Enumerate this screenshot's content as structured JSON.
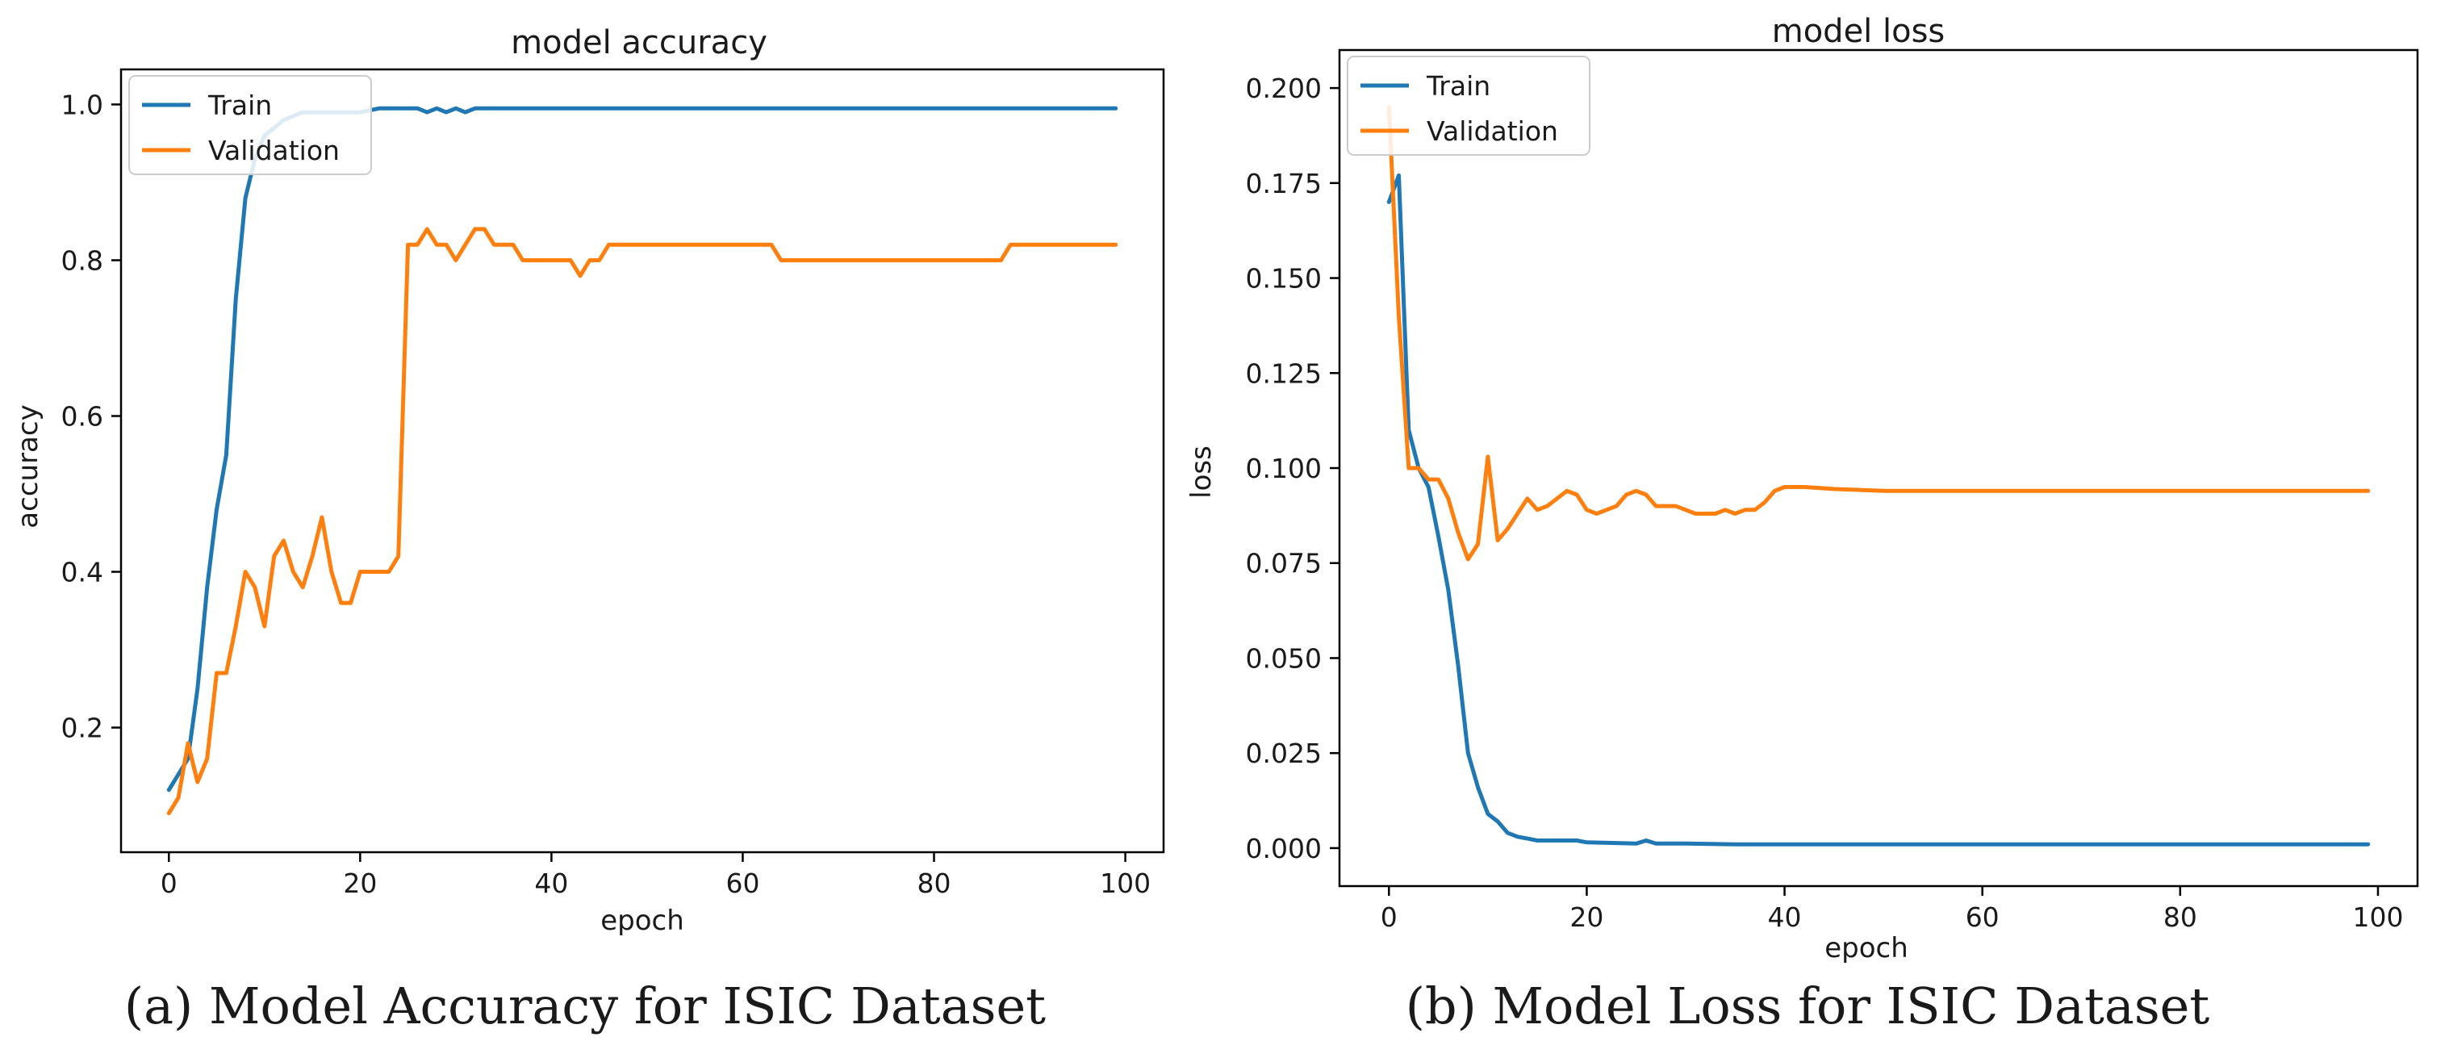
{
  "colors": {
    "train": "#1f77b4",
    "validation": "#ff7f0e",
    "axes": "#000000"
  },
  "chart_data": [
    {
      "id": "accuracy",
      "type": "line",
      "title": "model accuracy",
      "caption": "(a) Model Accuracy for ISIC Dataset",
      "xlabel": "epoch",
      "ylabel": "accuracy",
      "xlim": [
        -5,
        104
      ],
      "ylim": [
        0.04,
        1.045
      ],
      "xticks": [
        0,
        20,
        40,
        60,
        80,
        100
      ],
      "yticks": [
        0.2,
        0.4,
        0.6,
        0.8,
        1.0
      ],
      "ytick_labels": [
        "0.2",
        "0.4",
        "0.6",
        "0.8",
        "1.0"
      ],
      "legend": {
        "position": "top-left",
        "entries": [
          "Train",
          "Validation"
        ]
      },
      "series": [
        {
          "name": "Train",
          "x": [
            0,
            1,
            2,
            3,
            4,
            5,
            6,
            7,
            8,
            9,
            10,
            11,
            12,
            13,
            14,
            15,
            16,
            17,
            18,
            19,
            20,
            22,
            24,
            26,
            27,
            28,
            29,
            30,
            31,
            32,
            34,
            40,
            50,
            60,
            70,
            80,
            90,
            99
          ],
          "y": [
            0.12,
            0.14,
            0.16,
            0.25,
            0.38,
            0.48,
            0.55,
            0.75,
            0.88,
            0.93,
            0.96,
            0.97,
            0.98,
            0.985,
            0.99,
            0.99,
            0.99,
            0.99,
            0.99,
            0.99,
            0.99,
            0.995,
            0.995,
            0.995,
            0.99,
            0.995,
            0.99,
            0.995,
            0.99,
            0.995,
            0.995,
            0.995,
            0.995,
            0.995,
            0.995,
            0.995,
            0.995,
            0.995
          ]
        },
        {
          "name": "Validation",
          "x": [
            0,
            1,
            2,
            3,
            4,
            5,
            6,
            7,
            8,
            9,
            10,
            11,
            12,
            13,
            14,
            15,
            16,
            17,
            18,
            19,
            20,
            21,
            22,
            23,
            24,
            25,
            26,
            27,
            28,
            29,
            30,
            31,
            32,
            33,
            34,
            35,
            36,
            37,
            38,
            39,
            40,
            41,
            42,
            43,
            44,
            45,
            46,
            47,
            48,
            50,
            60,
            62,
            63,
            64,
            65,
            70,
            80,
            86,
            87,
            88,
            90,
            99
          ],
          "y": [
            0.09,
            0.11,
            0.18,
            0.13,
            0.16,
            0.27,
            0.27,
            0.33,
            0.4,
            0.38,
            0.33,
            0.42,
            0.44,
            0.4,
            0.38,
            0.42,
            0.47,
            0.4,
            0.36,
            0.36,
            0.4,
            0.4,
            0.4,
            0.4,
            0.42,
            0.82,
            0.82,
            0.84,
            0.82,
            0.82,
            0.8,
            0.82,
            0.84,
            0.84,
            0.82,
            0.82,
            0.82,
            0.8,
            0.8,
            0.8,
            0.8,
            0.8,
            0.8,
            0.78,
            0.8,
            0.8,
            0.82,
            0.82,
            0.82,
            0.82,
            0.82,
            0.82,
            0.82,
            0.8,
            0.8,
            0.8,
            0.8,
            0.8,
            0.8,
            0.82,
            0.82,
            0.82
          ]
        }
      ]
    },
    {
      "id": "loss",
      "type": "line",
      "title": "model loss",
      "caption": "(b) Model Loss for ISIC Dataset",
      "xlabel": "epoch",
      "ylabel": "loss",
      "xlim": [
        -5,
        104
      ],
      "ylim": [
        -0.01,
        0.21
      ],
      "xticks": [
        0,
        20,
        40,
        60,
        80,
        100
      ],
      "yticks": [
        0,
        0.025,
        0.05,
        0.075,
        0.1,
        0.125,
        0.15,
        0.175,
        0.2
      ],
      "ytick_labels": [
        "0.000",
        "0.025",
        "0.050",
        "0.075",
        "0.100",
        "0.125",
        "0.150",
        "0.175",
        "0.200"
      ],
      "legend": {
        "position": "top-left",
        "entries": [
          "Train",
          "Validation"
        ]
      },
      "series": [
        {
          "name": "Train",
          "x": [
            0,
            1,
            2,
            3,
            4,
            5,
            6,
            7,
            8,
            9,
            10,
            11,
            12,
            13,
            14,
            15,
            16,
            17,
            18,
            19,
            20,
            25,
            26,
            27,
            30,
            35,
            40,
            50,
            60,
            70,
            80,
            90,
            99
          ],
          "y": [
            0.17,
            0.177,
            0.11,
            0.1,
            0.095,
            0.082,
            0.068,
            0.048,
            0.025,
            0.016,
            0.009,
            0.007,
            0.004,
            0.003,
            0.0025,
            0.002,
            0.002,
            0.002,
            0.002,
            0.002,
            0.0015,
            0.0012,
            0.002,
            0.0012,
            0.0012,
            0.001,
            0.001,
            0.001,
            0.001,
            0.001,
            0.001,
            0.001,
            0.001
          ]
        },
        {
          "name": "Validation",
          "x": [
            0,
            1,
            2,
            3,
            4,
            5,
            6,
            7,
            8,
            9,
            10,
            11,
            12,
            13,
            14,
            15,
            16,
            17,
            18,
            19,
            20,
            21,
            22,
            23,
            24,
            25,
            26,
            27,
            28,
            29,
            30,
            31,
            32,
            33,
            34,
            35,
            36,
            37,
            38,
            39,
            40,
            42,
            45,
            50,
            60,
            70,
            80,
            90,
            99
          ],
          "y": [
            0.195,
            0.14,
            0.1,
            0.1,
            0.097,
            0.097,
            0.092,
            0.083,
            0.076,
            0.08,
            0.103,
            0.081,
            0.084,
            0.088,
            0.092,
            0.089,
            0.09,
            0.092,
            0.094,
            0.093,
            0.089,
            0.088,
            0.089,
            0.09,
            0.093,
            0.094,
            0.093,
            0.09,
            0.09,
            0.09,
            0.089,
            0.088,
            0.088,
            0.088,
            0.089,
            0.088,
            0.089,
            0.089,
            0.091,
            0.094,
            0.095,
            0.095,
            0.0945,
            0.094,
            0.094,
            0.094,
            0.094,
            0.094,
            0.094
          ]
        }
      ]
    }
  ]
}
